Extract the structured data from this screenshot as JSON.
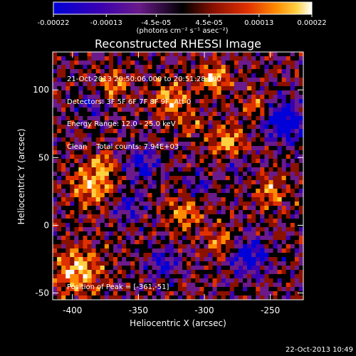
{
  "colorbar": {
    "tick_labels": [
      "-0.00022",
      "-0.00013",
      "-4.5e-05",
      "4.5e-05",
      "0.00013",
      "0.00022"
    ],
    "ticks": [
      -0.00022,
      -0.00013,
      -4.5e-05,
      4.5e-05,
      0.00013,
      0.00022
    ],
    "range": [
      -0.00022,
      0.00022
    ],
    "unit_label": "(photons cm⁻² s⁻¹ asec⁻²)",
    "colors": [
      "#0000d8",
      "#4000a0",
      "#6a1a8a",
      "#000000",
      "#8a1000",
      "#e03000",
      "#ff8a00",
      "#ffd040",
      "#ffffff"
    ]
  },
  "chart_data": {
    "type": "heatmap",
    "title": "Reconstructed RHESSI Image",
    "xlabel": "Heliocentric X (arcsec)",
    "ylabel": "Heliocentric Y (arcsec)",
    "xlim": [
      -415,
      -225
    ],
    "ylim": [
      -55,
      128
    ],
    "x_ticks": [
      -400,
      -350,
      -300,
      -250
    ],
    "y_ticks": [
      -50,
      0,
      50,
      100
    ],
    "annotations": [
      "21-Oct-2013 20:50:06.000 to 20:51:28.000",
      "Detectors: 3F 5F 6F 7F 8F 9F, Att 0",
      "Energy Range: 12.0 - 25.0 keV",
      "Clean    Total counts: 7.94E+03"
    ],
    "peak_label": "Position of Peak = [-361,-51]",
    "peak": [
      -361,
      -51
    ]
  },
  "footer": {
    "timestamp": "22-Oct-2013 10:49"
  }
}
